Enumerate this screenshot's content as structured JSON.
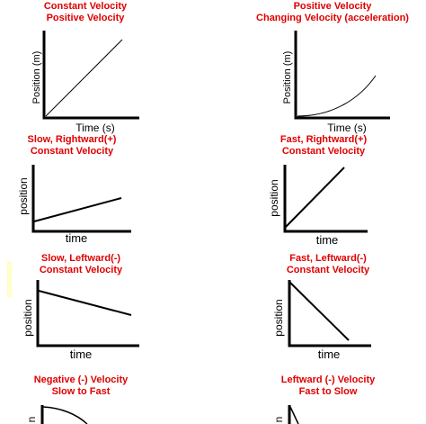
{
  "graphs": [
    {
      "line1": "Constant Velocity",
      "line2": "Positive Velocity",
      "xlabel": "Time (s)",
      "ylabel": "Position (m)"
    },
    {
      "line1": "Positive Velocity",
      "line2": "Changing Velocity (acceleration)",
      "xlabel": "Time (s)",
      "ylabel": "Position (m)"
    },
    {
      "line1": "Slow, Rightward(+)",
      "line2": "Constant Velocity",
      "xlabel": "time",
      "ylabel": "position"
    },
    {
      "line1": "Fast, Rightward(+)",
      "line2": "Constant Velocity",
      "xlabel": "time",
      "ylabel": "position"
    },
    {
      "line1": "Slow, Leftward(-)",
      "line2": "Constant Velocity",
      "xlabel": "time",
      "ylabel": "position"
    },
    {
      "line1": "Fast, Leftward(-)",
      "line2": "Constant Velocity",
      "xlabel": "time",
      "ylabel": "position"
    },
    {
      "line1": "Negative (-) Velocity",
      "line2": "Slow to Fast",
      "xlabel": "",
      "ylabel": "n"
    },
    {
      "line1": "Leftward (-) Velocity",
      "line2": "Fast to Slow",
      "xlabel": "",
      "ylabel": "n"
    }
  ],
  "colors": {
    "title": "#e00000",
    "axis": "#000000",
    "curve": "#000000"
  }
}
